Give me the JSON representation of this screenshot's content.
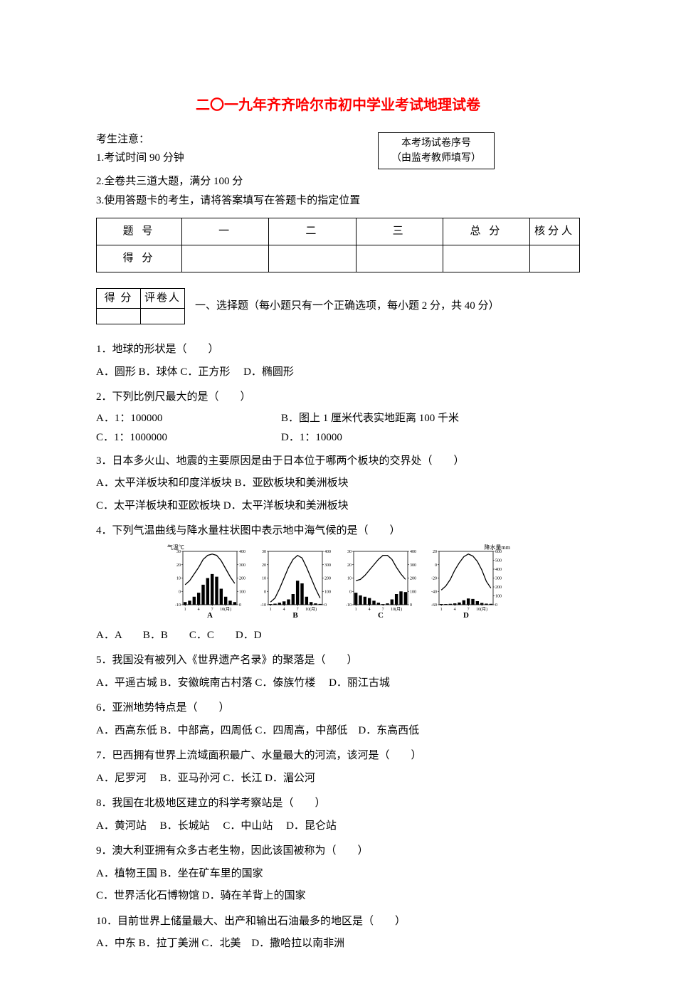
{
  "title": "二〇一九年齐齐哈尔市初中学业考试地理试卷",
  "notice": {
    "heading": "考生注意：",
    "items": [
      "1.考试时间 90 分钟",
      "2.全卷共三道大题，满分 100 分",
      "3.使用答题卡的考生，请将答案填写在答题卡的指定位置"
    ],
    "serial_box_line1": "本考场试卷序号",
    "serial_box_line2": "（由监考教师填写）"
  },
  "score_table": {
    "row1": [
      "题 号",
      "一",
      "二",
      "三",
      "总 分",
      "核分人"
    ],
    "row2_label": "得 分"
  },
  "scorer_box": {
    "c1": "得 分",
    "c2": "评卷人"
  },
  "section1_title": "一、选择题（每小题只有一个正确选项，每小题 2 分，共 40 分）",
  "q1": {
    "stem": "1．地球的形状是（　　）",
    "opts": "A．圆形 B．球体 C．正方形　 D．椭圆形"
  },
  "q2": {
    "stem": "2．下列比例尺最大的是（　　）",
    "A": "A．1：100000",
    "B": "B．图上 1 厘米代表实地距离 100 千米",
    "C": "C．1：1000000",
    "D": "D．1：10000"
  },
  "q3": {
    "stem": "3．日本多火山、地震的主要原因是由于日本位于哪两个板块的交界处（　　）",
    "line1": "A．太平洋板块和印度洋板块 B．亚欧板块和美洲板块",
    "line2": "C．太平洋板块和亚欧板块 D．太平洋板块和美洲板块"
  },
  "q4": {
    "stem": "4．下列气温曲线与降水量柱状图中表示地中海气候的是（　　）",
    "opts": "A．A　　B．B　　C．C　　D．D",
    "charts": {
      "yleft_label": "气温℃",
      "yright_label": "降水量mm",
      "xticks": [
        "1",
        "4",
        "7",
        "10(月)"
      ],
      "labels": [
        "A",
        "B",
        "C",
        "D"
      ],
      "A": {
        "temp": [
          5,
          8,
          13,
          18,
          24,
          27,
          28,
          27,
          23,
          17,
          11,
          6
        ],
        "precip": [
          20,
          30,
          60,
          90,
          150,
          200,
          230,
          210,
          120,
          60,
          30,
          20
        ]
      },
      "B": {
        "temp": [
          -8,
          -5,
          2,
          10,
          18,
          24,
          27,
          25,
          18,
          10,
          2,
          -5
        ],
        "precip": [
          5,
          8,
          15,
          25,
          40,
          80,
          180,
          160,
          60,
          20,
          10,
          6
        ]
      },
      "C": {
        "temp": [
          8,
          9,
          12,
          16,
          20,
          24,
          27,
          27,
          24,
          18,
          13,
          9
        ],
        "precip": [
          90,
          70,
          60,
          50,
          30,
          15,
          5,
          10,
          40,
          80,
          100,
          95
        ]
      },
      "D": {
        "temp": [
          -38,
          -32,
          -22,
          -8,
          3,
          12,
          16,
          13,
          5,
          -8,
          -25,
          -35
        ],
        "precip": [
          8,
          8,
          10,
          15,
          25,
          50,
          70,
          65,
          40,
          20,
          12,
          10
        ]
      },
      "temp_range": [
        -10,
        30
      ],
      "temp_range_D": [
        -60,
        20
      ],
      "precip_range": [
        0,
        400
      ],
      "precip_range_D": [
        0,
        600
      ],
      "bar_color": "#000000",
      "line_color": "#000000",
      "axis_color": "#000000"
    }
  },
  "q5": {
    "stem": "5．我国没有被列入《世界遗产名录》的聚落是（　　）",
    "opts": "A．平遥古城 B．安徽皖南古村落 C．傣族竹楼　 D．丽江古城"
  },
  "q6": {
    "stem": "6．亚洲地势特点是（　　）",
    "opts": "A．西高东低 B．中部高，四周低 C．四周高，中部低　D．东高西低"
  },
  "q7": {
    "stem": "7．巴西拥有世界上流域面积最广、水量最大的河流，该河是（　　）",
    "opts": "A．尼罗河　 B．亚马孙河 C．长江 D．湄公河"
  },
  "q8": {
    "stem": "8．我国在北极地区建立的科学考察站是（　　）",
    "opts": "A．黄河站　 B．长城站　 C．中山站　 D．昆仑站"
  },
  "q9": {
    "stem": "9．澳大利亚拥有众多古老生物，因此该国被称为（　　）",
    "line1": "A．植物王国 B．坐在矿车里的国家",
    "line2": "C．世界活化石博物馆 D．骑在羊背上的国家"
  },
  "q10": {
    "stem": "10．目前世界上储量最大、出产和输出石油最多的地区是（　　）",
    "opts": "A．中东 B．拉丁美洲 C．北美　D．撒哈拉以南非洲"
  }
}
